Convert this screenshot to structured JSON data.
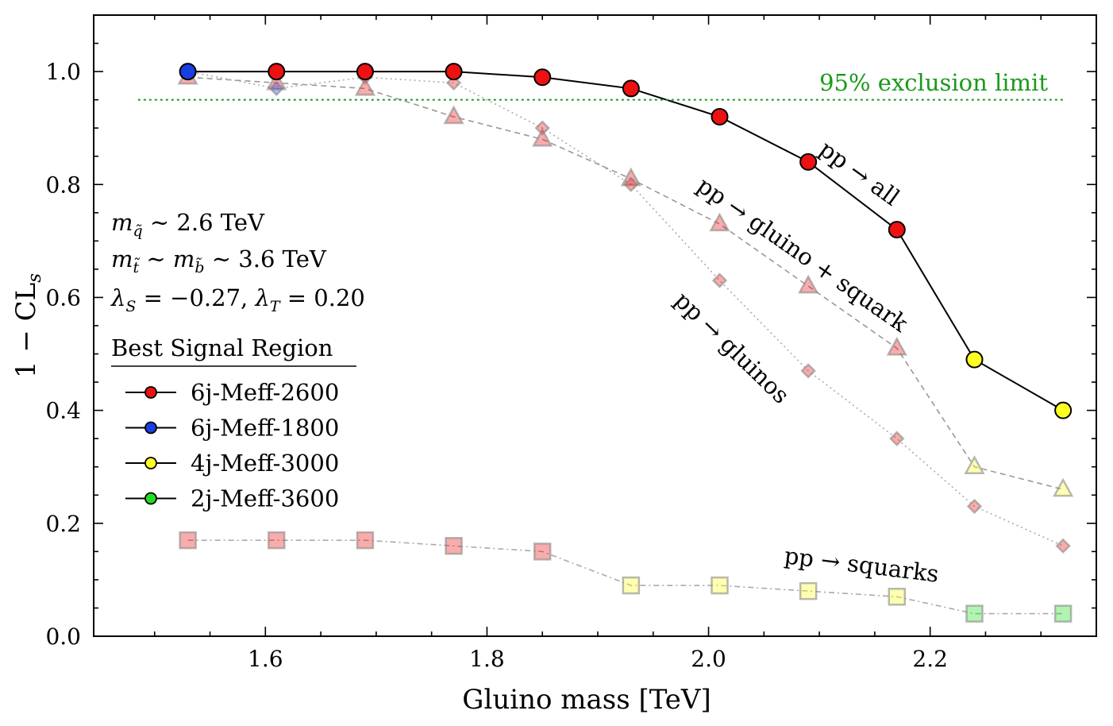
{
  "chart_data": {
    "type": "line",
    "xlabel": "Gluino mass [TeV]",
    "ylabel": "1 − CL",
    "ylabel_sub": "s",
    "xlim": [
      1.445,
      2.35
    ],
    "ylim": [
      0.0,
      1.1
    ],
    "xticks": [
      1.6,
      1.8,
      2.0,
      2.2
    ],
    "xtick_labels": [
      "1.6",
      "1.8",
      "2.0",
      "2.2"
    ],
    "yticks": [
      0.0,
      0.2,
      0.4,
      0.6,
      0.8,
      1.0
    ],
    "ytick_labels": [
      "0.0",
      "0.2",
      "0.4",
      "0.6",
      "0.8",
      "1.0"
    ],
    "x": [
      1.53,
      1.61,
      1.69,
      1.77,
      1.85,
      1.93,
      2.01,
      2.09,
      2.17,
      2.24,
      2.32
    ],
    "limit": {
      "value": 0.95,
      "label": "95% exclusion limit",
      "x_range": [
        1.485,
        2.32
      ],
      "color": "#1a9a1a"
    },
    "signal_region_colors": {
      "6j-Meff-2600": "#ee1111",
      "6j-Meff-1800": "#1a3fe0",
      "4j-Meff-3000": "#ffff22",
      "2j-Meff-3600": "#22dd22"
    },
    "series": [
      {
        "name": "pp → all",
        "marker": "circle",
        "values": [
          1.0,
          1.0,
          1.0,
          1.0,
          0.99,
          0.97,
          0.92,
          0.84,
          0.72,
          0.49,
          0.4
        ],
        "regions": [
          "6j-Meff-1800",
          "6j-Meff-2600",
          "6j-Meff-2600",
          "6j-Meff-2600",
          "6j-Meff-2600",
          "6j-Meff-2600",
          "6j-Meff-2600",
          "6j-Meff-2600",
          "6j-Meff-2600",
          "4j-Meff-3000",
          "4j-Meff-3000"
        ]
      },
      {
        "name": "pp → gluino + squark",
        "marker": "triangle",
        "values": [
          0.99,
          0.98,
          0.97,
          0.92,
          0.88,
          0.81,
          0.73,
          0.62,
          0.51,
          0.3,
          0.26
        ],
        "regions": [
          "6j-Meff-2600",
          "6j-Meff-2600",
          "6j-Meff-2600",
          "6j-Meff-2600",
          "6j-Meff-2600",
          "6j-Meff-2600",
          "6j-Meff-2600",
          "6j-Meff-2600",
          "6j-Meff-2600",
          "4j-Meff-3000",
          "4j-Meff-3000"
        ]
      },
      {
        "name": "pp → gluinos",
        "marker": "diamond",
        "values": [
          1.0,
          0.97,
          0.99,
          0.98,
          0.9,
          0.8,
          0.63,
          0.47,
          0.35,
          0.23,
          0.16
        ],
        "regions": [
          "6j-Meff-1800",
          "6j-Meff-1800",
          "6j-Meff-2600",
          "6j-Meff-2600",
          "6j-Meff-2600",
          "6j-Meff-2600",
          "6j-Meff-2600",
          "6j-Meff-2600",
          "6j-Meff-2600",
          "6j-Meff-2600",
          "6j-Meff-2600"
        ]
      },
      {
        "name": "pp → squarks",
        "marker": "square",
        "values": [
          0.17,
          0.17,
          0.17,
          0.16,
          0.15,
          0.09,
          0.09,
          0.08,
          0.07,
          0.04,
          0.04
        ],
        "regions": [
          "6j-Meff-2600",
          "6j-Meff-2600",
          "6j-Meff-2600",
          "6j-Meff-2600",
          "6j-Meff-2600",
          "4j-Meff-3000",
          "4j-Meff-3000",
          "4j-Meff-3000",
          "4j-Meff-3000",
          "2j-Meff-3600",
          "2j-Meff-3600"
        ]
      }
    ],
    "curve_labels": {
      "all": "pp → all",
      "gluino_squark": "pp → gluino + squark",
      "gluinos": "pp → gluinos",
      "squarks": "pp → squarks"
    },
    "params": {
      "line1": {
        "sym": "m",
        "sub": "q̃",
        "rest": " ∼ 2.6 TeV"
      },
      "line2": {
        "sym1": "m",
        "sub1": "t̃",
        "mid": " ∼ ",
        "sym2": "m",
        "sub2": "b̃",
        "rest": " ∼ 3.6 TeV"
      },
      "line3": {
        "s1": "λ",
        "sub1": "S",
        "mid": " = −0.27, ",
        "s2": "λ",
        "sub2": "T",
        "rest": " = 0.20"
      }
    },
    "legend": {
      "title": "Best Signal Region",
      "entries": [
        "6j-Meff-2600",
        "6j-Meff-1800",
        "4j-Meff-3000",
        "2j-Meff-3600"
      ]
    }
  }
}
